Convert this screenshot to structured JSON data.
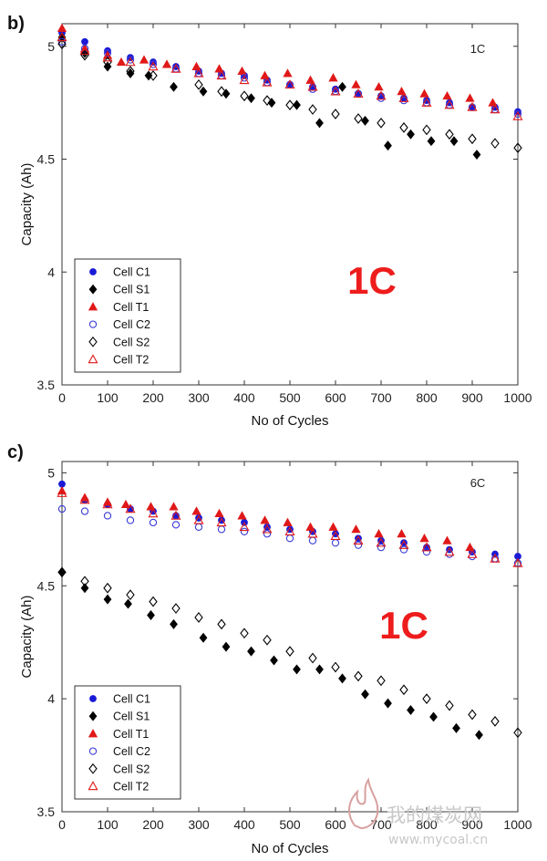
{
  "chart_data": [
    {
      "type": "scatter",
      "panel_label": "b)",
      "rate_label": "1C",
      "overlay_label": "1C",
      "xlabel": "No of Cycles",
      "ylabel": "Capacity (Ah)",
      "xlim": [
        0,
        1000
      ],
      "ylim": [
        3.5,
        5.1
      ],
      "xticks": [
        "0",
        "100",
        "200",
        "300",
        "400",
        "500",
        "600",
        "700",
        "800",
        "900",
        "1000"
      ],
      "yticks": [
        "3.5",
        "4",
        "4.5",
        "5"
      ],
      "grid": false,
      "legend_position": "bottom-left",
      "series": [
        {
          "name": "Cell C1",
          "marker": "circle-filled",
          "color": "#1a1ad6",
          "x": [
            0,
            50,
            100,
            150,
            200,
            250,
            300,
            350,
            400,
            450,
            500,
            550,
            600,
            650,
            700,
            750,
            800,
            850,
            900,
            950,
            1000
          ],
          "y": [
            5.06,
            5.02,
            4.98,
            4.95,
            4.93,
            4.91,
            4.89,
            4.88,
            4.87,
            4.85,
            4.83,
            4.82,
            4.81,
            4.79,
            4.78,
            4.77,
            4.76,
            4.75,
            4.73,
            4.73,
            4.71
          ]
        },
        {
          "name": "Cell S1",
          "marker": "diamond-filled",
          "color": "#000000",
          "x": [
            0,
            50,
            100,
            150,
            190,
            245,
            310,
            360,
            415,
            460,
            515,
            565,
            615,
            665,
            715,
            765,
            810,
            860,
            910
          ],
          "y": [
            5.04,
            4.97,
            4.91,
            4.88,
            4.87,
            4.82,
            4.8,
            4.79,
            4.77,
            4.75,
            4.74,
            4.66,
            4.82,
            4.67,
            4.56,
            4.61,
            4.58,
            4.58,
            4.52
          ]
        },
        {
          "name": "Cell T1",
          "marker": "triangle-filled",
          "color": "#e01818",
          "x": [
            0,
            50,
            100,
            130,
            180,
            230,
            295,
            345,
            395,
            445,
            495,
            545,
            595,
            645,
            695,
            745,
            795,
            845,
            895,
            945
          ],
          "y": [
            5.08,
            4.99,
            4.96,
            4.93,
            4.94,
            4.92,
            4.91,
            4.9,
            4.89,
            4.87,
            4.88,
            4.85,
            4.86,
            4.83,
            4.82,
            4.8,
            4.79,
            4.78,
            4.77,
            4.75
          ]
        },
        {
          "name": "Cell C2",
          "marker": "circle-open",
          "color": "#3a3ad6",
          "x": [
            0,
            50,
            100,
            150,
            200,
            250,
            300,
            350,
            400,
            450,
            500,
            550,
            600,
            650,
            700,
            750,
            800,
            850,
            900,
            950,
            1000
          ],
          "y": [
            5.02,
            4.99,
            4.97,
            4.94,
            4.92,
            4.9,
            4.88,
            4.87,
            4.86,
            4.84,
            4.83,
            4.81,
            4.8,
            4.79,
            4.77,
            4.76,
            4.75,
            4.74,
            4.73,
            4.72,
            4.7
          ]
        },
        {
          "name": "Cell S2",
          "marker": "diamond-open",
          "color": "#000000",
          "x": [
            0,
            50,
            100,
            150,
            200,
            300,
            350,
            400,
            450,
            500,
            550,
            600,
            650,
            700,
            750,
            800,
            850,
            900,
            950,
            1000
          ],
          "y": [
            5.01,
            4.96,
            4.93,
            4.89,
            4.87,
            4.83,
            4.8,
            4.78,
            4.76,
            4.74,
            4.72,
            4.7,
            4.68,
            4.66,
            4.64,
            4.63,
            4.61,
            4.59,
            4.57,
            4.55
          ]
        },
        {
          "name": "Cell T2",
          "marker": "triangle-open",
          "color": "#e01818",
          "x": [
            0,
            50,
            100,
            150,
            200,
            250,
            300,
            350,
            400,
            450,
            500,
            550,
            600,
            650,
            700,
            750,
            800,
            850,
            900,
            950,
            1000
          ],
          "y": [
            5.04,
            4.98,
            4.95,
            4.93,
            4.91,
            4.9,
            4.88,
            4.87,
            4.85,
            4.84,
            4.83,
            4.82,
            4.8,
            4.79,
            4.78,
            4.77,
            4.75,
            4.74,
            4.73,
            4.72,
            4.69
          ]
        }
      ]
    },
    {
      "type": "scatter",
      "panel_label": "c)",
      "rate_label": "6C",
      "overlay_label": "1C",
      "xlabel": "No of Cycles",
      "ylabel": "Capacity (Ah)",
      "xlim": [
        0,
        1000
      ],
      "ylim": [
        3.5,
        5.05
      ],
      "xticks": [
        "0",
        "100",
        "200",
        "300",
        "400",
        "500",
        "600",
        "700",
        "800",
        "900",
        "1000"
      ],
      "yticks": [
        "3.5",
        "4",
        "4.5",
        "5"
      ],
      "grid": false,
      "legend_position": "bottom-left",
      "series": [
        {
          "name": "Cell C1",
          "marker": "circle-filled",
          "color": "#1a1ad6",
          "x": [
            0,
            50,
            100,
            150,
            200,
            250,
            300,
            350,
            400,
            450,
            500,
            550,
            600,
            650,
            700,
            750,
            800,
            850,
            900,
            950,
            1000
          ],
          "y": [
            4.95,
            4.88,
            4.86,
            4.84,
            4.83,
            4.81,
            4.8,
            4.79,
            4.78,
            4.76,
            4.75,
            4.74,
            4.73,
            4.71,
            4.7,
            4.69,
            4.67,
            4.66,
            4.65,
            4.64,
            4.63
          ]
        },
        {
          "name": "Cell S1",
          "marker": "diamond-filled",
          "color": "#000000",
          "x": [
            0,
            50,
            100,
            145,
            195,
            245,
            310,
            360,
            415,
            465,
            515,
            565,
            615,
            665,
            715,
            765,
            815,
            865,
            915
          ],
          "y": [
            4.56,
            4.49,
            4.44,
            4.42,
            4.37,
            4.33,
            4.27,
            4.23,
            4.21,
            4.17,
            4.13,
            4.13,
            4.09,
            4.02,
            3.98,
            3.95,
            3.92,
            3.87,
            3.84
          ]
        },
        {
          "name": "Cell T1",
          "marker": "triangle-filled",
          "color": "#e01818",
          "x": [
            0,
            50,
            100,
            140,
            195,
            245,
            295,
            345,
            395,
            445,
            495,
            545,
            595,
            645,
            695,
            745,
            795,
            845,
            895
          ],
          "y": [
            4.92,
            4.89,
            4.87,
            4.86,
            4.85,
            4.85,
            4.83,
            4.82,
            4.81,
            4.79,
            4.78,
            4.76,
            4.76,
            4.75,
            4.73,
            4.73,
            4.71,
            4.7,
            4.67
          ]
        },
        {
          "name": "Cell C2",
          "marker": "circle-open",
          "color": "#3a3ad6",
          "x": [
            0,
            50,
            100,
            150,
            200,
            250,
            300,
            350,
            400,
            450,
            500,
            550,
            600,
            650,
            700,
            750,
            800,
            850,
            900,
            950,
            1000
          ],
          "y": [
            4.84,
            4.83,
            4.81,
            4.79,
            4.78,
            4.77,
            4.76,
            4.75,
            4.74,
            4.73,
            4.71,
            4.7,
            4.69,
            4.68,
            4.67,
            4.66,
            4.65,
            4.64,
            4.63,
            4.62,
            4.6
          ]
        },
        {
          "name": "Cell S2",
          "marker": "diamond-open",
          "color": "#000000",
          "x": [
            0,
            50,
            100,
            150,
            200,
            250,
            300,
            350,
            400,
            450,
            500,
            550,
            600,
            650,
            700,
            750,
            800,
            850,
            900,
            950,
            1000
          ],
          "y": [
            4.56,
            4.52,
            4.49,
            4.46,
            4.43,
            4.4,
            4.36,
            4.33,
            4.29,
            4.26,
            4.21,
            4.18,
            4.14,
            4.1,
            4.08,
            4.04,
            4.0,
            3.97,
            3.93,
            3.9,
            3.85
          ]
        },
        {
          "name": "Cell T2",
          "marker": "triangle-open",
          "color": "#e01818",
          "x": [
            0,
            50,
            100,
            150,
            200,
            250,
            300,
            350,
            400,
            450,
            500,
            550,
            600,
            650,
            700,
            750,
            800,
            850,
            900,
            950,
            1000
          ],
          "y": [
            4.91,
            4.88,
            4.86,
            4.84,
            4.82,
            4.81,
            4.79,
            4.78,
            4.76,
            4.75,
            4.74,
            4.73,
            4.72,
            4.7,
            4.69,
            4.68,
            4.67,
            4.65,
            4.64,
            4.62,
            4.6
          ]
        }
      ]
    }
  ],
  "watermark": {
    "line1": "我的煤炭网",
    "line2": "www.mycoal.cn"
  }
}
